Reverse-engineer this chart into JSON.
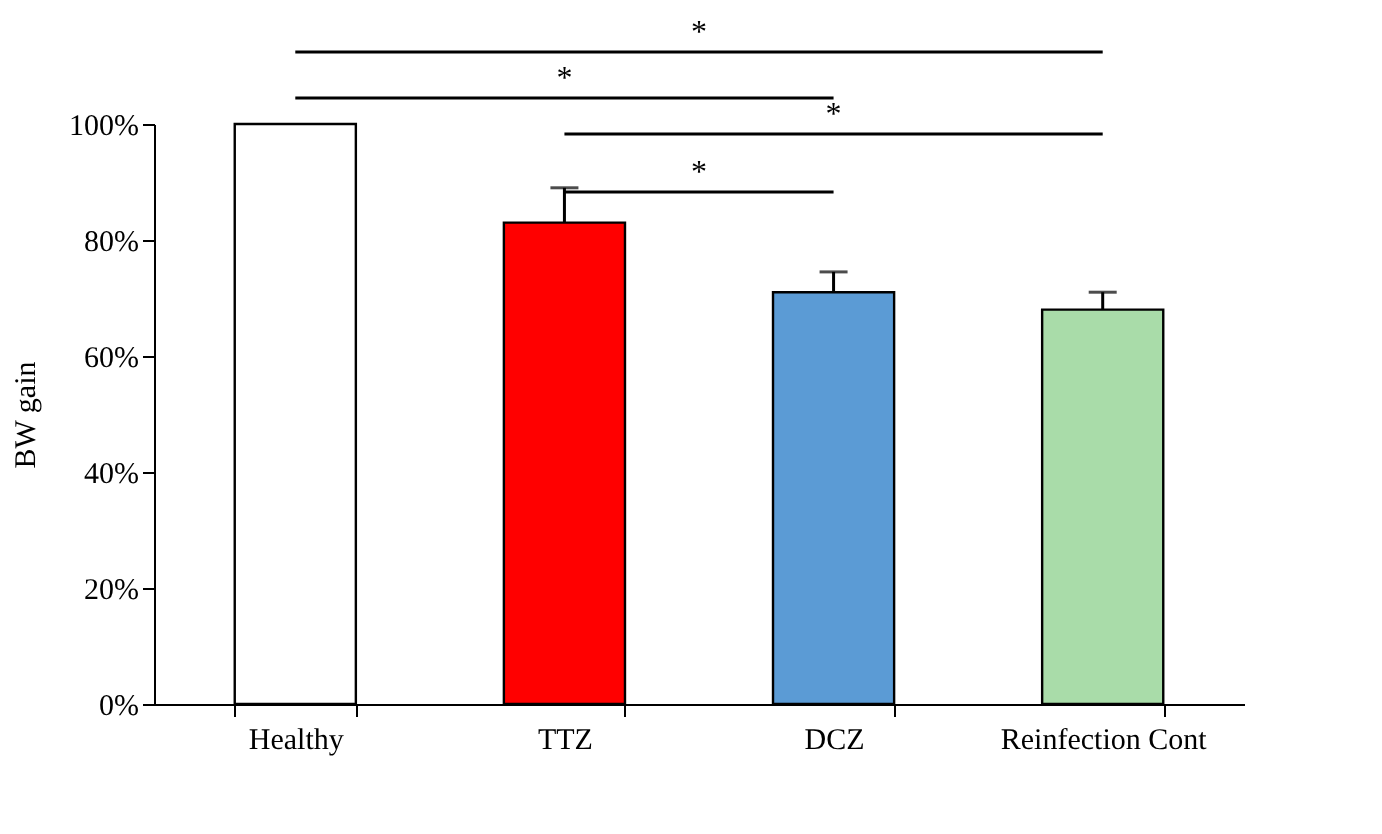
{
  "chart_data": {
    "type": "bar",
    "ylabel": "BW gain",
    "categories": [
      "Healthy",
      "TTZ",
      "DCZ",
      "Reinfection Cont"
    ],
    "values": [
      100,
      83,
      71,
      68
    ],
    "colors": [
      "#ffffff",
      "#ff0000",
      "#5b9bd5",
      "#a9dca9"
    ],
    "errors": [
      null,
      [
        83,
        89
      ],
      [
        71,
        74.5
      ],
      [
        68,
        71
      ]
    ],
    "ylim": [
      0,
      100
    ],
    "yticks": [
      {
        "value": 0,
        "label": "0%"
      },
      {
        "value": 20,
        "label": "20%"
      },
      {
        "value": 40,
        "label": "40%"
      },
      {
        "value": 60,
        "label": "60%"
      },
      {
        "value": 80,
        "label": "80%"
      },
      {
        "value": 100,
        "label": "100%"
      }
    ],
    "annotations": [
      "*",
      "*",
      "*",
      "*"
    ],
    "grid": false
  }
}
